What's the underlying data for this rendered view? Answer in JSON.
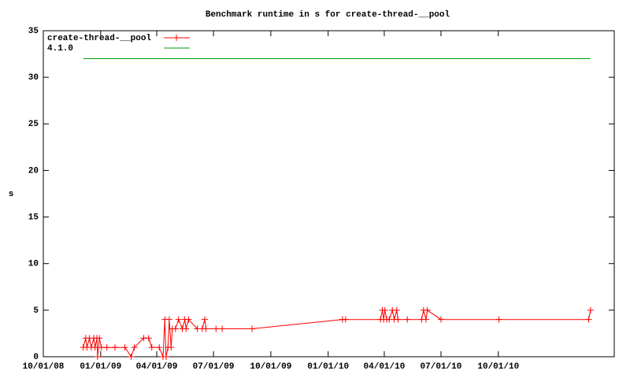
{
  "chart_data": {
    "type": "line",
    "title": "Benchmark runtime in s for create-thread-__pool",
    "y_label": "s",
    "xlim": [
      "2008-10-01",
      "2011-04-05"
    ],
    "xticks": [
      {
        "value": "2008-10-01",
        "label": "10/01/08"
      },
      {
        "value": "2009-01-01",
        "label": "01/01/09"
      },
      {
        "value": "2009-04-01",
        "label": "04/01/09"
      },
      {
        "value": "2009-07-01",
        "label": "07/01/09"
      },
      {
        "value": "2009-10-01",
        "label": "10/01/09"
      },
      {
        "value": "2010-01-01",
        "label": "01/01/10"
      },
      {
        "value": "2010-04-01",
        "label": "04/01/10"
      },
      {
        "value": "2010-07-01",
        "label": "07/01/10"
      },
      {
        "value": "2010-10-01",
        "label": "10/01/10"
      }
    ],
    "ylim": [
      0,
      35
    ],
    "yticks": [
      0,
      5,
      10,
      15,
      20,
      25,
      30,
      35
    ],
    "legend": "top-left",
    "series": [
      {
        "name": "create-thread-__pool",
        "color": "#ff0000",
        "markers": true,
        "x": [
          "2008-12-04",
          "2008-12-08",
          "2008-12-10",
          "2008-12-14",
          "2008-12-17",
          "2008-12-21",
          "2008-12-23",
          "2008-12-26",
          "2008-12-27",
          "2008-12-30",
          "2009-01-02",
          "2009-01-11",
          "2009-01-24",
          "2009-02-09",
          "2009-02-19",
          "2009-02-24",
          "2009-03-11",
          "2009-03-19",
          "2009-03-24",
          "2009-04-05",
          "2009-04-11",
          "2009-04-14",
          "2009-04-16",
          "2009-04-19",
          "2009-04-21",
          "2009-04-24",
          "2009-04-26",
          "2009-05-01",
          "2009-05-06",
          "2009-05-12",
          "2009-05-16",
          "2009-05-18",
          "2009-05-22",
          "2009-06-05",
          "2009-06-13",
          "2009-06-17",
          "2009-06-19",
          "2009-07-05",
          "2009-07-15",
          "2009-09-01",
          "2010-01-24",
          "2010-01-29",
          "2010-03-26",
          "2010-03-29",
          "2010-03-31",
          "2010-04-02",
          "2010-04-05",
          "2010-04-09",
          "2010-04-14",
          "2010-04-17",
          "2010-04-21",
          "2010-04-23",
          "2010-05-08",
          "2010-05-31",
          "2010-06-03",
          "2010-06-07",
          "2010-06-09",
          "2010-07-01",
          "2010-10-02",
          "2011-02-23",
          "2011-02-26"
        ],
        "values": [
          1,
          2,
          1,
          2,
          1,
          2,
          1,
          2,
          0,
          2,
          1,
          1,
          1,
          1,
          0,
          1,
          2,
          2,
          1,
          1,
          0,
          4,
          0,
          1,
          4,
          1,
          3,
          3,
          4,
          3,
          4,
          3,
          4,
          3,
          3,
          4,
          3,
          3,
          3,
          3,
          4,
          4,
          4,
          5,
          4,
          5,
          4,
          4,
          5,
          4,
          5,
          4,
          4,
          4,
          5,
          4,
          5,
          4,
          4,
          4,
          5
        ]
      },
      {
        "name": "4.1.0",
        "color": "#00a000",
        "markers": false,
        "x": [
          "2008-12-04",
          "2011-02-26"
        ],
        "values": [
          32,
          32
        ]
      }
    ]
  }
}
